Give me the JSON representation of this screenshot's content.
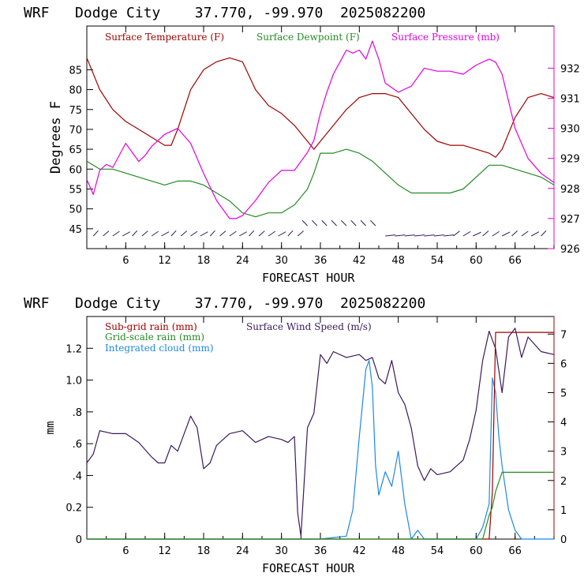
{
  "charts": [
    {
      "title": "WRF   Dodge City    37.770, -99.970  2025082200",
      "xlabel": "FORECAST HOUR",
      "ylabel": "Degrees F",
      "legend": [
        "Surface Temperature (F)",
        "Surface Dewpoint (F)",
        "Surface Pressure (mb)"
      ],
      "x_ticks": [
        "6",
        "12",
        "18",
        "24",
        "30",
        "36",
        "42",
        "48",
        "54",
        "60",
        "66"
      ],
      "y_left_ticks": [
        "45",
        "50",
        "55",
        "60",
        "65",
        "70",
        "75",
        "80",
        "85"
      ],
      "y_right_ticks": [
        "926",
        "927",
        "928",
        "929",
        "930",
        "931",
        "932"
      ]
    },
    {
      "title": "WRF   Dodge City    37.770, -99.970  2025082200",
      "xlabel": "FORECAST HOUR",
      "ylabel": "mm",
      "legend": [
        "Sub-grid rain (mm)",
        "Grid-scale rain (mm)",
        "Integrated cloud (mm)",
        "Surface Wind Speed (m/s)"
      ],
      "x_ticks": [
        "6",
        "12",
        "18",
        "24",
        "30",
        "36",
        "42",
        "48",
        "54",
        "60",
        "66"
      ],
      "y_left_ticks": [
        "0",
        "0.2",
        ".4",
        ".6",
        ".8",
        "1.0",
        "1.2"
      ],
      "y_right_ticks": [
        "0",
        "1",
        "2",
        "3",
        "4",
        "5",
        "6",
        "7"
      ]
    }
  ],
  "chart_data": [
    {
      "type": "line",
      "xlim": [
        0,
        72
      ],
      "ylim_left": [
        40,
        96
      ],
      "ylim_right": [
        926,
        933.4
      ],
      "colors": {
        "temperature": "#a00000",
        "dewpoint": "#228b22",
        "pressure": "#e000e0",
        "wind_barbs": "#3a1a5a"
      },
      "series": [
        {
          "name": "Surface Temperature (F)",
          "axis": "left",
          "color": "#a00000",
          "x": [
            0,
            2,
            4,
            6,
            8,
            10,
            12,
            13,
            14,
            16,
            18,
            20,
            22,
            24,
            26,
            28,
            30,
            32,
            34,
            35,
            36,
            38,
            40,
            42,
            44,
            46,
            48,
            50,
            52,
            54,
            56,
            58,
            60,
            62,
            63,
            64,
            66,
            68,
            70,
            72
          ],
          "y": [
            88,
            80,
            75,
            72,
            70,
            68,
            66,
            66,
            70,
            80,
            85,
            87,
            88,
            87,
            80,
            76,
            74,
            71,
            67,
            65,
            67,
            71,
            75,
            78,
            79,
            79,
            78,
            74,
            70,
            67,
            66,
            66,
            65,
            64,
            63,
            65,
            73,
            78,
            79,
            78
          ]
        },
        {
          "name": "Surface Dewpoint (F)",
          "axis": "left",
          "color": "#228b22",
          "x": [
            0,
            2,
            4,
            6,
            8,
            10,
            12,
            14,
            16,
            18,
            20,
            22,
            24,
            26,
            28,
            30,
            32,
            34,
            35,
            36,
            38,
            40,
            42,
            44,
            46,
            48,
            50,
            52,
            54,
            56,
            58,
            60,
            62,
            63,
            64,
            66,
            68,
            70,
            72
          ],
          "y": [
            62,
            60,
            60,
            59,
            58,
            57,
            56,
            57,
            57,
            56,
            54,
            52,
            49,
            48,
            49,
            49,
            51,
            55,
            59,
            64,
            64,
            65,
            64,
            62,
            59,
            56,
            54,
            54,
            54,
            54,
            55,
            58,
            61,
            61,
            61,
            60,
            59,
            58,
            56
          ]
        },
        {
          "name": "Surface Pressure (mb)",
          "axis": "right",
          "color": "#e000e0",
          "x": [
            0,
            1,
            2,
            3,
            4,
            5,
            6,
            7,
            8,
            9,
            10,
            12,
            14,
            16,
            18,
            20,
            22,
            23,
            24,
            26,
            28,
            30,
            32,
            34,
            35,
            36,
            37,
            38,
            39,
            40,
            41,
            42,
            43,
            44,
            45,
            46,
            48,
            50,
            52,
            54,
            56,
            58,
            60,
            62,
            63,
            64,
            66,
            68,
            70,
            72
          ],
          "y": [
            928.3,
            927.8,
            928.6,
            928.8,
            928.7,
            929.1,
            929.5,
            929.2,
            928.9,
            929.1,
            929.4,
            929.8,
            930.0,
            929.5,
            928.5,
            927.6,
            927.0,
            927.0,
            927.1,
            927.6,
            928.2,
            928.6,
            928.6,
            929.2,
            929.6,
            930.5,
            931.2,
            931.8,
            932.2,
            932.6,
            932.5,
            932.6,
            932.3,
            932.9,
            932.3,
            931.5,
            931.2,
            931.4,
            932.0,
            931.9,
            931.9,
            931.8,
            932.1,
            932.3,
            932.2,
            931.8,
            930.0,
            929.0,
            928.5,
            928.2
          ]
        }
      ]
    },
    {
      "type": "line",
      "xlim": [
        0,
        72
      ],
      "ylim_left": [
        0,
        1.4
      ],
      "ylim_right": [
        0,
        7.6
      ],
      "colors": {
        "subgrid": "#a00000",
        "gridscale": "#228b22",
        "cloud": "#1e88e5",
        "wind": "#3a1a5a"
      },
      "series": [
        {
          "name": "Surface Wind Speed (m/s)",
          "axis": "right",
          "color": "#3a1a5a",
          "x": [
            0,
            1,
            2,
            4,
            6,
            8,
            10,
            11,
            12,
            13,
            14,
            16,
            17,
            18,
            19,
            20,
            22,
            24,
            26,
            28,
            30,
            31,
            32,
            32.5,
            33,
            34,
            35,
            36,
            37,
            38,
            40,
            42,
            43,
            44,
            45,
            46,
            47,
            48,
            49,
            50,
            51,
            52,
            53,
            54,
            56,
            58,
            59,
            60,
            61,
            62,
            63,
            64,
            65,
            66,
            67,
            68,
            70,
            72
          ],
          "y": [
            2.6,
            2.9,
            3.7,
            3.6,
            3.6,
            3.3,
            2.8,
            2.6,
            2.6,
            3.2,
            3.0,
            4.2,
            3.8,
            2.4,
            2.6,
            3.2,
            3.6,
            3.7,
            3.3,
            3.5,
            3.4,
            3.3,
            3.5,
            0.9,
            0.1,
            3.8,
            4.3,
            6.3,
            6.0,
            6.4,
            6.2,
            6.3,
            6.1,
            6.2,
            5.5,
            5.3,
            6.1,
            5.0,
            4.6,
            3.8,
            2.5,
            2.0,
            2.4,
            2.2,
            2.3,
            2.7,
            3.4,
            4.4,
            6.1,
            7.1,
            6.5,
            5.0,
            6.9,
            7.2,
            6.2,
            6.9,
            6.4,
            6.3
          ]
        },
        {
          "name": "Integrated cloud (mm)",
          "axis": "right",
          "color": "#1e88e5",
          "x": [
            0,
            36,
            38,
            40,
            41,
            42,
            43,
            43.5,
            44,
            44.5,
            45,
            46,
            47,
            48,
            49,
            50,
            51,
            52,
            54,
            58,
            60,
            61,
            62,
            62.5,
            63,
            63.5,
            64,
            65,
            66,
            67,
            72
          ],
          "y": [
            0,
            0,
            0.05,
            0.1,
            1.0,
            3.5,
            5.8,
            6.1,
            5.2,
            2.5,
            1.5,
            2.3,
            1.8,
            3.0,
            1.2,
            0,
            0.3,
            0,
            0,
            0,
            0,
            0.4,
            1.2,
            5.5,
            5.0,
            3.5,
            2.5,
            1.0,
            0.3,
            0,
            0
          ]
        },
        {
          "name": "Sub-grid rain (mm)",
          "axis": "left",
          "color": "#a00000",
          "x": [
            0,
            44,
            48,
            62,
            62.5,
            63,
            72
          ],
          "y": [
            0,
            0,
            0,
            0,
            0.3,
            1.3,
            1.3
          ]
        },
        {
          "name": "Grid-scale rain (mm)",
          "axis": "left",
          "color": "#228b22",
          "x": [
            0,
            61,
            62,
            62.5,
            63,
            64,
            72
          ],
          "y": [
            0,
            0,
            0.15,
            0.2,
            0.3,
            0.42,
            0.42
          ]
        }
      ]
    }
  ]
}
